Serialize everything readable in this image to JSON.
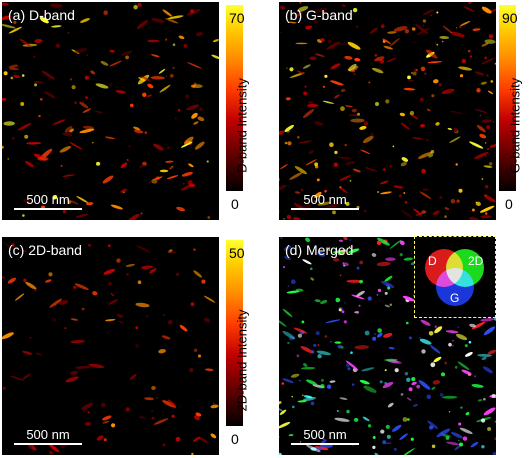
{
  "panels": {
    "a": {
      "label": "(a) D-band",
      "scale": "500 nm",
      "cbar_max": "70",
      "cbar_min": "0",
      "cbar_title": "D-band Intensity"
    },
    "b": {
      "label": "(b) G-band",
      "scale": "500 nm",
      "cbar_max": "90",
      "cbar_min": "0",
      "cbar_title": "G-band Intensity"
    },
    "c": {
      "label": "(c) 2D-band",
      "scale": "500 nm",
      "cbar_max": "50",
      "cbar_min": "0",
      "cbar_title": "2D-band Intensity"
    },
    "d": {
      "label": "(d) Merged",
      "scale": "500 nm"
    }
  },
  "venn": {
    "d": "D",
    "g": "G",
    "twod": "2D",
    "colors": {
      "d": "#ff2020",
      "g": "#2040ff",
      "twod": "#20ff20"
    }
  },
  "colormap": [
    "#000000",
    "#5a0000",
    "#c00000",
    "#ff3d00",
    "#ff9000",
    "#ffd000",
    "#ffff30"
  ]
}
